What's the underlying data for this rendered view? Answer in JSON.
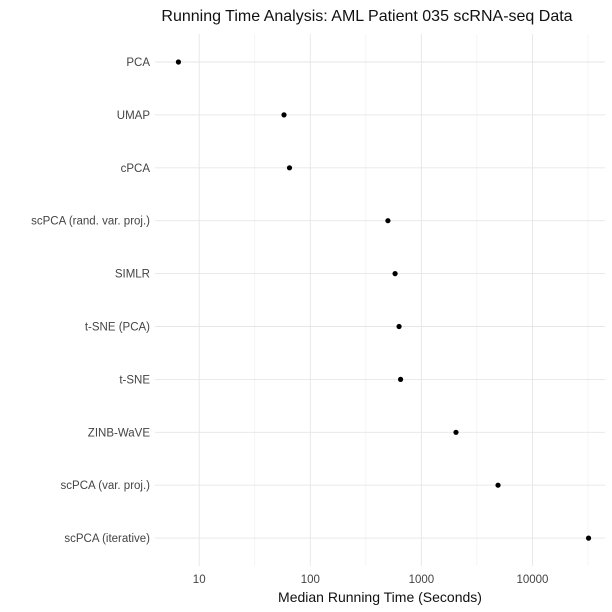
{
  "chart_data": {
    "type": "scatter",
    "title": "Running Time Analysis: AML Patient 035 scRNA-seq Data",
    "xlabel": "Median Running Time (Seconds)",
    "ylabel": "",
    "x_scale": "log10",
    "xlim": [
      4,
      45000
    ],
    "x_ticks": [
      10,
      100,
      1000,
      10000
    ],
    "x_tick_labels": [
      "10",
      "100",
      "1000",
      "10000"
    ],
    "grid": true,
    "legend": "none",
    "points": [
      {
        "method": "PCA",
        "x": 6.5
      },
      {
        "method": "UMAP",
        "x": 58
      },
      {
        "method": "cPCA",
        "x": 65
      },
      {
        "method": "scPCA (rand. var. proj.)",
        "x": 500
      },
      {
        "method": "SIMLR",
        "x": 580
      },
      {
        "method": "t-SNE (PCA)",
        "x": 630
      },
      {
        "method": "t-SNE",
        "x": 650
      },
      {
        "method": "ZINB-WaVE",
        "x": 2050
      },
      {
        "method": "scPCA (var. proj.)",
        "x": 4900
      },
      {
        "method": "scPCA (iterative)",
        "x": 32000
      }
    ]
  }
}
